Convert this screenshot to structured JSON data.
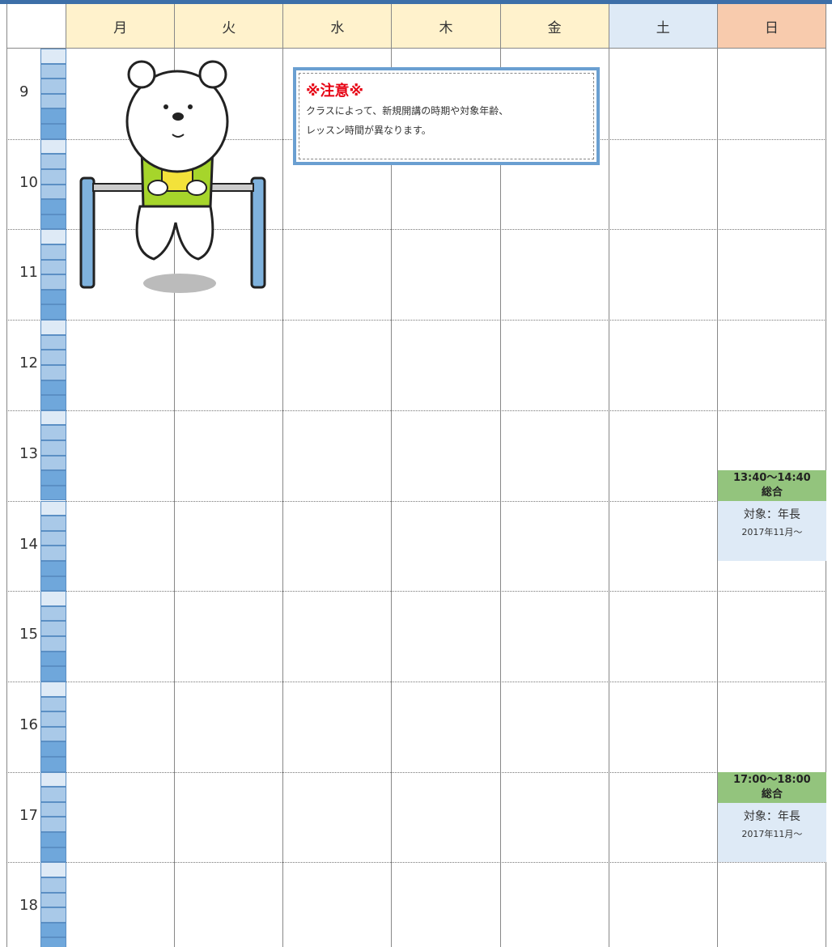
{
  "header": {
    "days": [
      "月",
      "火",
      "水",
      "木",
      "金",
      "土",
      "日"
    ]
  },
  "hours": [
    "9",
    "10",
    "11",
    "12",
    "13",
    "14",
    "15",
    "16",
    "17",
    "18"
  ],
  "notice": {
    "title": "※注意※",
    "lines": [
      "クラスによって、新規開講の時期や対象年齢、",
      "レッスン時間が異なります。"
    ]
  },
  "events": [
    {
      "time": "13:40〜14:40",
      "class": "総合",
      "target": "対象：年長",
      "since": "2017年11月〜"
    },
    {
      "time": "17:00〜18:00",
      "class": "総合",
      "target": "対象：年長",
      "since": "2017年11月〜"
    }
  ]
}
